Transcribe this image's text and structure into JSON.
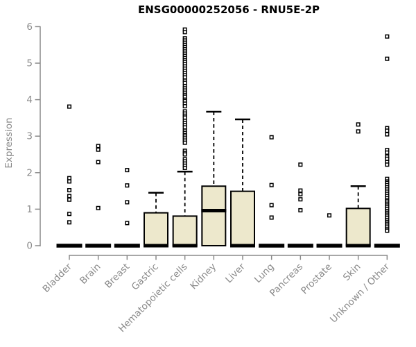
{
  "chart_data": {
    "type": "box",
    "title": "ENSG00000252056 - RNU5E-2P",
    "gene_id": "ENSG00000252056",
    "gene_symbol": "RNU5E-2P",
    "xlabel": "",
    "ylabel": "Expression",
    "ylim": [
      0,
      6
    ],
    "yticks": [
      0,
      1,
      2,
      3,
      4,
      5,
      6
    ],
    "grid": false,
    "legend": false,
    "box_fill": "#EDE8CC",
    "box_border": "#000000",
    "axis_color": "#8a8a8a",
    "categories": [
      "Bladder",
      "Brain",
      "Breast",
      "Gastric",
      "Hematopoietic cells",
      "Kidney",
      "Liver",
      "Lung",
      "Pancreas",
      "Prostate",
      "Skin",
      "Unknown / Other"
    ],
    "boxes": [
      {
        "category": "Bladder",
        "q1": 0,
        "median": 0,
        "q3": 0,
        "whisker_low": 0,
        "whisker_high": 0,
        "outliers": [
          3.81,
          1.85,
          1.76,
          1.52,
          1.36,
          1.26,
          0.87,
          0.64
        ]
      },
      {
        "category": "Brain",
        "q1": 0,
        "median": 0,
        "q3": 0,
        "whisker_low": 0,
        "whisker_high": 0,
        "outliers": [
          2.73,
          2.63,
          2.29,
          1.03
        ]
      },
      {
        "category": "Breast",
        "q1": 0,
        "median": 0,
        "q3": 0,
        "whisker_low": 0,
        "whisker_high": 0,
        "outliers": [
          2.07,
          1.65,
          1.19,
          0.62
        ]
      },
      {
        "category": "Gastric",
        "q1": 0,
        "median": 0,
        "q3": 0.9,
        "whisker_low": 0,
        "whisker_high": 1.45,
        "outliers": []
      },
      {
        "category": "Hematopoietic cells",
        "q1": 0,
        "median": 0,
        "q3": 0.81,
        "whisker_low": 0,
        "whisker_high": 2.03,
        "outliers": [
          5.92,
          5.85,
          5.68,
          5.62,
          5.56,
          5.5,
          5.44,
          5.38,
          5.32,
          5.26,
          5.2,
          5.14,
          5.08,
          5.03,
          4.97,
          4.91,
          4.85,
          4.79,
          4.73,
          4.67,
          4.61,
          4.52,
          4.46,
          4.37,
          4.31,
          4.25,
          4.19,
          4.13,
          4.08,
          4.0,
          3.96,
          3.89,
          3.82,
          3.68,
          3.62,
          3.56,
          3.51,
          3.42,
          3.36,
          3.3,
          3.24,
          3.15,
          3.09,
          3.03,
          2.99,
          2.94,
          2.88,
          2.82,
          2.6,
          2.54,
          2.5,
          2.37,
          2.31,
          2.25,
          2.19,
          2.13
        ]
      },
      {
        "category": "Kidney",
        "q1": 0,
        "median": 0.96,
        "q3": 1.63,
        "whisker_low": 0,
        "whisker_high": 3.67,
        "outliers": []
      },
      {
        "category": "Liver",
        "q1": 0,
        "median": 0,
        "q3": 1.49,
        "whisker_low": 0,
        "whisker_high": 3.46,
        "outliers": []
      },
      {
        "category": "Lung",
        "q1": 0,
        "median": 0,
        "q3": 0,
        "whisker_low": 0,
        "whisker_high": 0,
        "outliers": [
          2.97,
          1.66,
          1.11,
          0.77
        ]
      },
      {
        "category": "Pancreas",
        "q1": 0,
        "median": 0,
        "q3": 0,
        "whisker_low": 0,
        "whisker_high": 0,
        "outliers": [
          2.22,
          1.51,
          1.41,
          1.27,
          0.97
        ]
      },
      {
        "category": "Prostate",
        "q1": 0,
        "median": 0,
        "q3": 0,
        "whisker_low": 0,
        "whisker_high": 0,
        "outliers": [
          0.83
        ]
      },
      {
        "category": "Skin",
        "q1": 0,
        "median": 0,
        "q3": 1.02,
        "whisker_low": 0,
        "whisker_high": 1.63,
        "outliers": [
          3.32,
          3.13
        ]
      },
      {
        "category": "Unknown / Other",
        "q1": 0,
        "median": 0,
        "q3": 0,
        "whisker_low": 0,
        "whisker_high": 0,
        "outliers": [
          5.73,
          5.12,
          3.22,
          3.15,
          3.05,
          2.62,
          2.55,
          2.44,
          2.38,
          2.29,
          2.22,
          1.83,
          1.76,
          1.72,
          1.66,
          1.6,
          1.54,
          1.48,
          1.42,
          1.36,
          1.3,
          1.24,
          1.21,
          1.15,
          1.1,
          1.05,
          1.0,
          0.95,
          0.9,
          0.85,
          0.8,
          0.75,
          0.7,
          0.65,
          0.6,
          0.55,
          0.5,
          0.45,
          0.41
        ]
      }
    ]
  }
}
